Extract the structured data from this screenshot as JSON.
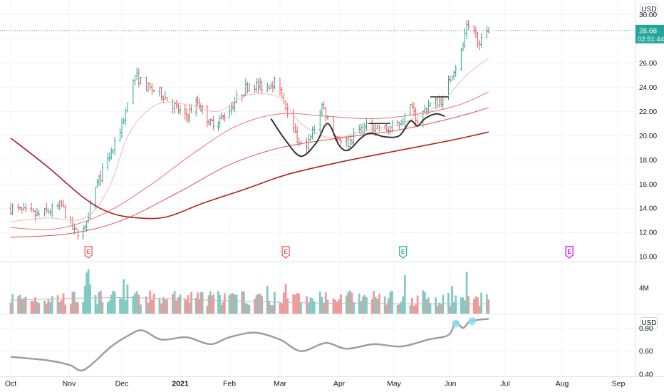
{
  "chart_data": {
    "type": "ohlc",
    "title": "",
    "currency": "USD",
    "x_axis": {
      "tick_labels": [
        "Oct",
        "Nov",
        "Dec",
        "2021",
        "Feb",
        "Mar",
        "Apr",
        "May",
        "Jun",
        "Jul",
        "Aug",
        "Sep"
      ]
    },
    "price_panel": {
      "y_ticks": [
        "10.00",
        "12.00",
        "14.00",
        "16.00",
        "18.00",
        "20.00",
        "22.00",
        "24.00",
        "26.00",
        "28.00",
        "30.00"
      ],
      "ylim": [
        9.6,
        31.2
      ],
      "last_price": "28.68",
      "countdown": "02:51:44",
      "price_line_value": 28.68,
      "earnings_markers": [
        {
          "label": "E",
          "date": "2020-11-12",
          "color": "#ef5350"
        },
        {
          "label": "E",
          "date": "2021-03-04",
          "color": "#ef5350"
        },
        {
          "label": "E",
          "date": "2021-05-06",
          "color": "#26a69a"
        },
        {
          "label": "E",
          "date": "2021-08-05",
          "color": "#d500f9"
        }
      ],
      "bars_colors": {
        "up": "#26a69a",
        "down": "#ef5350"
      }
    },
    "volume_panel": {
      "y_ticks": [
        "4M"
      ],
      "ylim": [
        0,
        8
      ]
    },
    "rs_panel": {
      "y_ticks": [
        "0.40",
        "0.60",
        "0.80"
      ],
      "ylim": [
        0.38,
        0.92
      ],
      "unit_label": "USD"
    },
    "series": [
      {
        "kind": "moving_average",
        "color": "#f4b8b4",
        "points": [
          [
            "2020-10-01",
            12.9
          ],
          [
            "2020-10-20",
            13.2
          ],
          [
            "2020-11-10",
            13.2
          ],
          [
            "2020-11-24",
            15.8
          ],
          [
            "2020-12-05",
            20.2
          ],
          [
            "2020-12-20",
            22.6
          ],
          [
            "2021-01-08",
            22.5
          ],
          [
            "2021-01-25",
            22.0
          ],
          [
            "2021-02-10",
            23.3
          ],
          [
            "2021-02-28",
            23.2
          ],
          [
            "2021-03-12",
            21.0
          ],
          [
            "2021-03-28",
            19.8
          ],
          [
            "2021-04-15",
            20.4
          ],
          [
            "2021-05-05",
            21.0
          ],
          [
            "2021-05-25",
            22.5
          ],
          [
            "2021-06-10",
            25.0
          ],
          [
            "2021-06-22",
            26.4
          ]
        ]
      },
      {
        "kind": "moving_average",
        "color": "#e57373",
        "points": [
          [
            "2020-10-01",
            12.4
          ],
          [
            "2020-10-25",
            12.3
          ],
          [
            "2020-11-20",
            13.5
          ],
          [
            "2020-12-15",
            15.8
          ],
          [
            "2021-01-10",
            18.6
          ],
          [
            "2021-02-05",
            20.8
          ],
          [
            "2021-03-01",
            21.8
          ],
          [
            "2021-03-25",
            21.6
          ],
          [
            "2021-04-20",
            21.4
          ],
          [
            "2021-05-15",
            21.8
          ],
          [
            "2021-06-05",
            22.5
          ],
          [
            "2021-06-22",
            23.6
          ]
        ]
      },
      {
        "kind": "moving_average",
        "color": "#d9534f",
        "points": [
          [
            "2020-10-01",
            11.6
          ],
          [
            "2020-11-01",
            11.9
          ],
          [
            "2020-12-01",
            13.0
          ],
          [
            "2021-01-01",
            15.4
          ],
          [
            "2021-02-01",
            17.6
          ],
          [
            "2021-03-01",
            19.0
          ],
          [
            "2021-04-01",
            19.8
          ],
          [
            "2021-05-01",
            20.4
          ],
          [
            "2021-06-01",
            21.4
          ],
          [
            "2021-06-22",
            22.3
          ]
        ]
      },
      {
        "kind": "moving_average",
        "color": "#b71c1c",
        "points": [
          [
            "2020-10-01",
            19.8
          ],
          [
            "2020-10-20",
            17.5
          ],
          [
            "2020-11-10",
            14.8
          ],
          [
            "2020-11-25",
            13.6
          ],
          [
            "2020-12-10",
            13.2
          ],
          [
            "2020-12-25",
            13.3
          ],
          [
            "2021-01-15",
            14.4
          ],
          [
            "2021-02-10",
            15.6
          ],
          [
            "2021-03-05",
            16.8
          ],
          [
            "2021-04-01",
            17.8
          ],
          [
            "2021-05-01",
            18.7
          ],
          [
            "2021-06-01",
            19.6
          ],
          [
            "2021-06-22",
            20.3
          ]
        ]
      },
      {
        "kind": "drawn_pattern",
        "color": "#333333",
        "points": [
          [
            "2021-02-24",
            21.4
          ],
          [
            "2021-03-04",
            19.6
          ],
          [
            "2021-03-12",
            18.3
          ],
          [
            "2021-03-20",
            19.4
          ],
          [
            "2021-03-26",
            21.0
          ],
          [
            "2021-04-01",
            19.2
          ],
          [
            "2021-04-06",
            18.8
          ],
          [
            "2021-04-13",
            19.8
          ],
          [
            "2021-04-18",
            20.2
          ],
          [
            "2021-04-26",
            19.9
          ],
          [
            "2021-05-04",
            20.0
          ],
          [
            "2021-05-10",
            21.2
          ],
          [
            "2021-05-14",
            20.8
          ],
          [
            "2021-05-18",
            21.4
          ],
          [
            "2021-05-24",
            21.8
          ],
          [
            "2021-05-29",
            21.6
          ]
        ]
      },
      {
        "kind": "level_segment",
        "color": "#333333",
        "value": 21.0,
        "from": "2021-04-17",
        "to": "2021-04-29"
      },
      {
        "kind": "level_segment",
        "color": "#333333",
        "value": 23.2,
        "from": "2021-05-21",
        "to": "2021-05-31"
      },
      {
        "kind": "volume_average",
        "color": "#b8b8b8",
        "points": [
          [
            "2020-10-01",
            2.1
          ],
          [
            "2020-12-01",
            2.5
          ],
          [
            "2021-02-01",
            2.0
          ],
          [
            "2021-04-01",
            1.6
          ],
          [
            "2021-06-22",
            1.5
          ]
        ]
      },
      {
        "kind": "relative_strength",
        "color": "#9e9e9e",
        "points": [
          [
            "2020-10-01",
            0.55
          ],
          [
            "2020-10-20",
            0.52
          ],
          [
            "2020-11-01",
            0.48
          ],
          [
            "2020-11-08",
            0.43
          ],
          [
            "2020-11-15",
            0.5
          ],
          [
            "2020-11-25",
            0.64
          ],
          [
            "2020-12-05",
            0.74
          ],
          [
            "2020-12-12",
            0.78
          ],
          [
            "2020-12-22",
            0.7
          ],
          [
            "2021-01-05",
            0.72
          ],
          [
            "2021-01-20",
            0.66
          ],
          [
            "2021-02-01",
            0.72
          ],
          [
            "2021-02-15",
            0.76
          ],
          [
            "2021-03-01",
            0.7
          ],
          [
            "2021-03-12",
            0.6
          ],
          [
            "2021-03-25",
            0.67
          ],
          [
            "2021-04-05",
            0.62
          ],
          [
            "2021-04-20",
            0.66
          ],
          [
            "2021-05-05",
            0.64
          ],
          [
            "2021-05-20",
            0.7
          ],
          [
            "2021-05-31",
            0.74
          ],
          [
            "2021-06-04",
            0.85
          ],
          [
            "2021-06-08",
            0.8
          ],
          [
            "2021-06-12",
            0.86
          ],
          [
            "2021-06-22",
            0.88
          ]
        ]
      }
    ],
    "rs_highlights": [
      {
        "date": "2021-06-04",
        "value": 0.84
      },
      {
        "date": "2021-06-13",
        "value": 0.86
      }
    ]
  }
}
